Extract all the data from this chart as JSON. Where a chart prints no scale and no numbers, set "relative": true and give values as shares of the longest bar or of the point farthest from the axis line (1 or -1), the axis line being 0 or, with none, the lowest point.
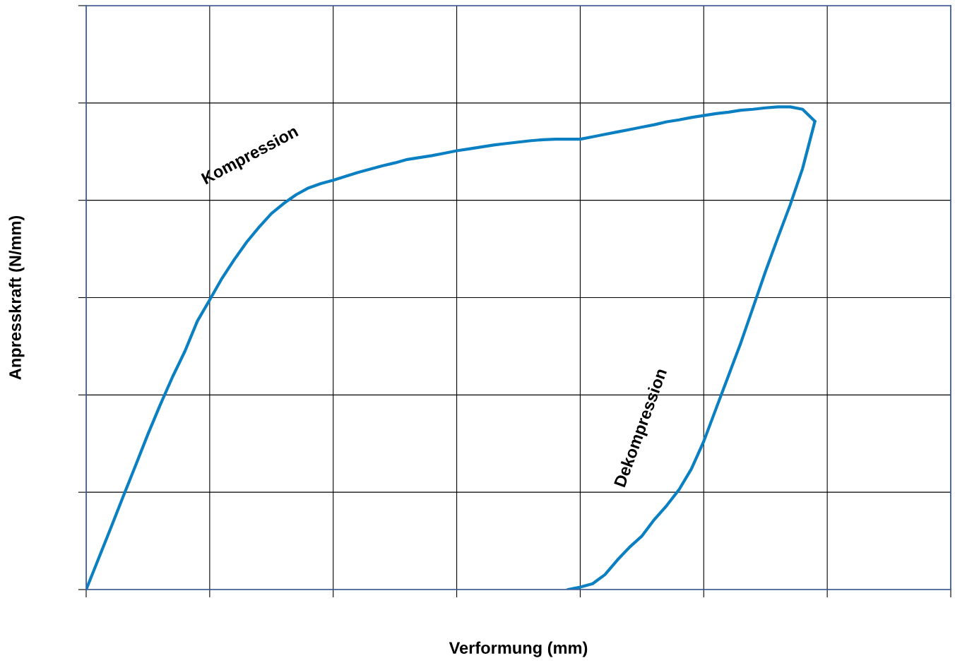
{
  "chart_data": {
    "type": "line",
    "relative": true,
    "xlabel": "Verformung (mm)",
    "ylabel": "Anpresskraft (N/mm)",
    "grid": true,
    "legend": false,
    "marker": "none",
    "line_style": "solid",
    "categories": [
      null,
      null,
      null,
      null,
      null,
      null,
      null,
      null,
      null,
      null,
      null,
      null,
      null,
      null,
      null,
      null,
      null,
      null,
      null,
      null,
      null,
      null,
      null,
      null,
      null,
      null,
      null,
      null,
      null,
      null,
      null,
      null,
      null,
      null,
      null,
      null,
      null,
      null,
      null,
      null,
      null,
      null,
      null,
      null,
      null,
      null,
      null,
      null,
      null,
      null,
      null,
      null,
      null,
      null,
      null,
      null,
      null,
      null,
      null,
      null,
      null,
      null,
      null,
      null,
      null,
      null,
      null,
      null,
      null,
      null,
      null
    ],
    "tick_labels": false,
    "series": [
      {
        "name": "Kompression",
        "color": "#0a7fc2",
        "values": [
          0,
          0.064,
          0.128,
          0.193,
          0.257,
          0.322,
          0.383,
          0.441,
          0.494,
          0.556,
          0.6,
          0.645,
          0.684,
          0.72,
          0.751,
          0.779,
          0.8,
          0.818,
          0.832,
          0.841,
          0.848,
          0.856,
          0.864,
          0.871,
          0.878,
          0.884,
          0.891,
          0.895,
          0.899,
          0.904,
          0.909,
          0.913,
          0.917,
          0.921,
          0.924,
          0.927,
          0.93,
          0.932,
          0.933,
          0.933,
          0.933,
          0.938,
          0.943,
          0.948,
          0.953,
          0.958,
          0.963,
          0.969,
          0.973,
          0.978,
          0.982,
          0.986,
          0.989,
          0.993,
          0.995,
          0.998,
          1.0,
          1.0,
          0.995,
          0.97,
          null,
          null,
          null,
          null,
          null,
          null,
          null,
          null,
          null,
          null,
          null
        ]
      },
      {
        "name": "Dekompression",
        "color": "#0a7fc2",
        "values": [
          null,
          null,
          null,
          null,
          null,
          null,
          null,
          null,
          null,
          null,
          null,
          null,
          null,
          null,
          null,
          null,
          null,
          null,
          null,
          null,
          null,
          null,
          null,
          null,
          null,
          null,
          null,
          null,
          null,
          null,
          null,
          null,
          null,
          null,
          null,
          null,
          null,
          null,
          null,
          0,
          0.005,
          0.012,
          0.031,
          0.061,
          0.088,
          0.111,
          0.145,
          0.174,
          0.207,
          0.25,
          0.307,
          0.375,
          0.443,
          0.511,
          0.585,
          0.659,
          0.729,
          0.797,
          0.872,
          0.97,
          null,
          null,
          null,
          null,
          null,
          null,
          null,
          null,
          null,
          null,
          null
        ]
      }
    ]
  }
}
